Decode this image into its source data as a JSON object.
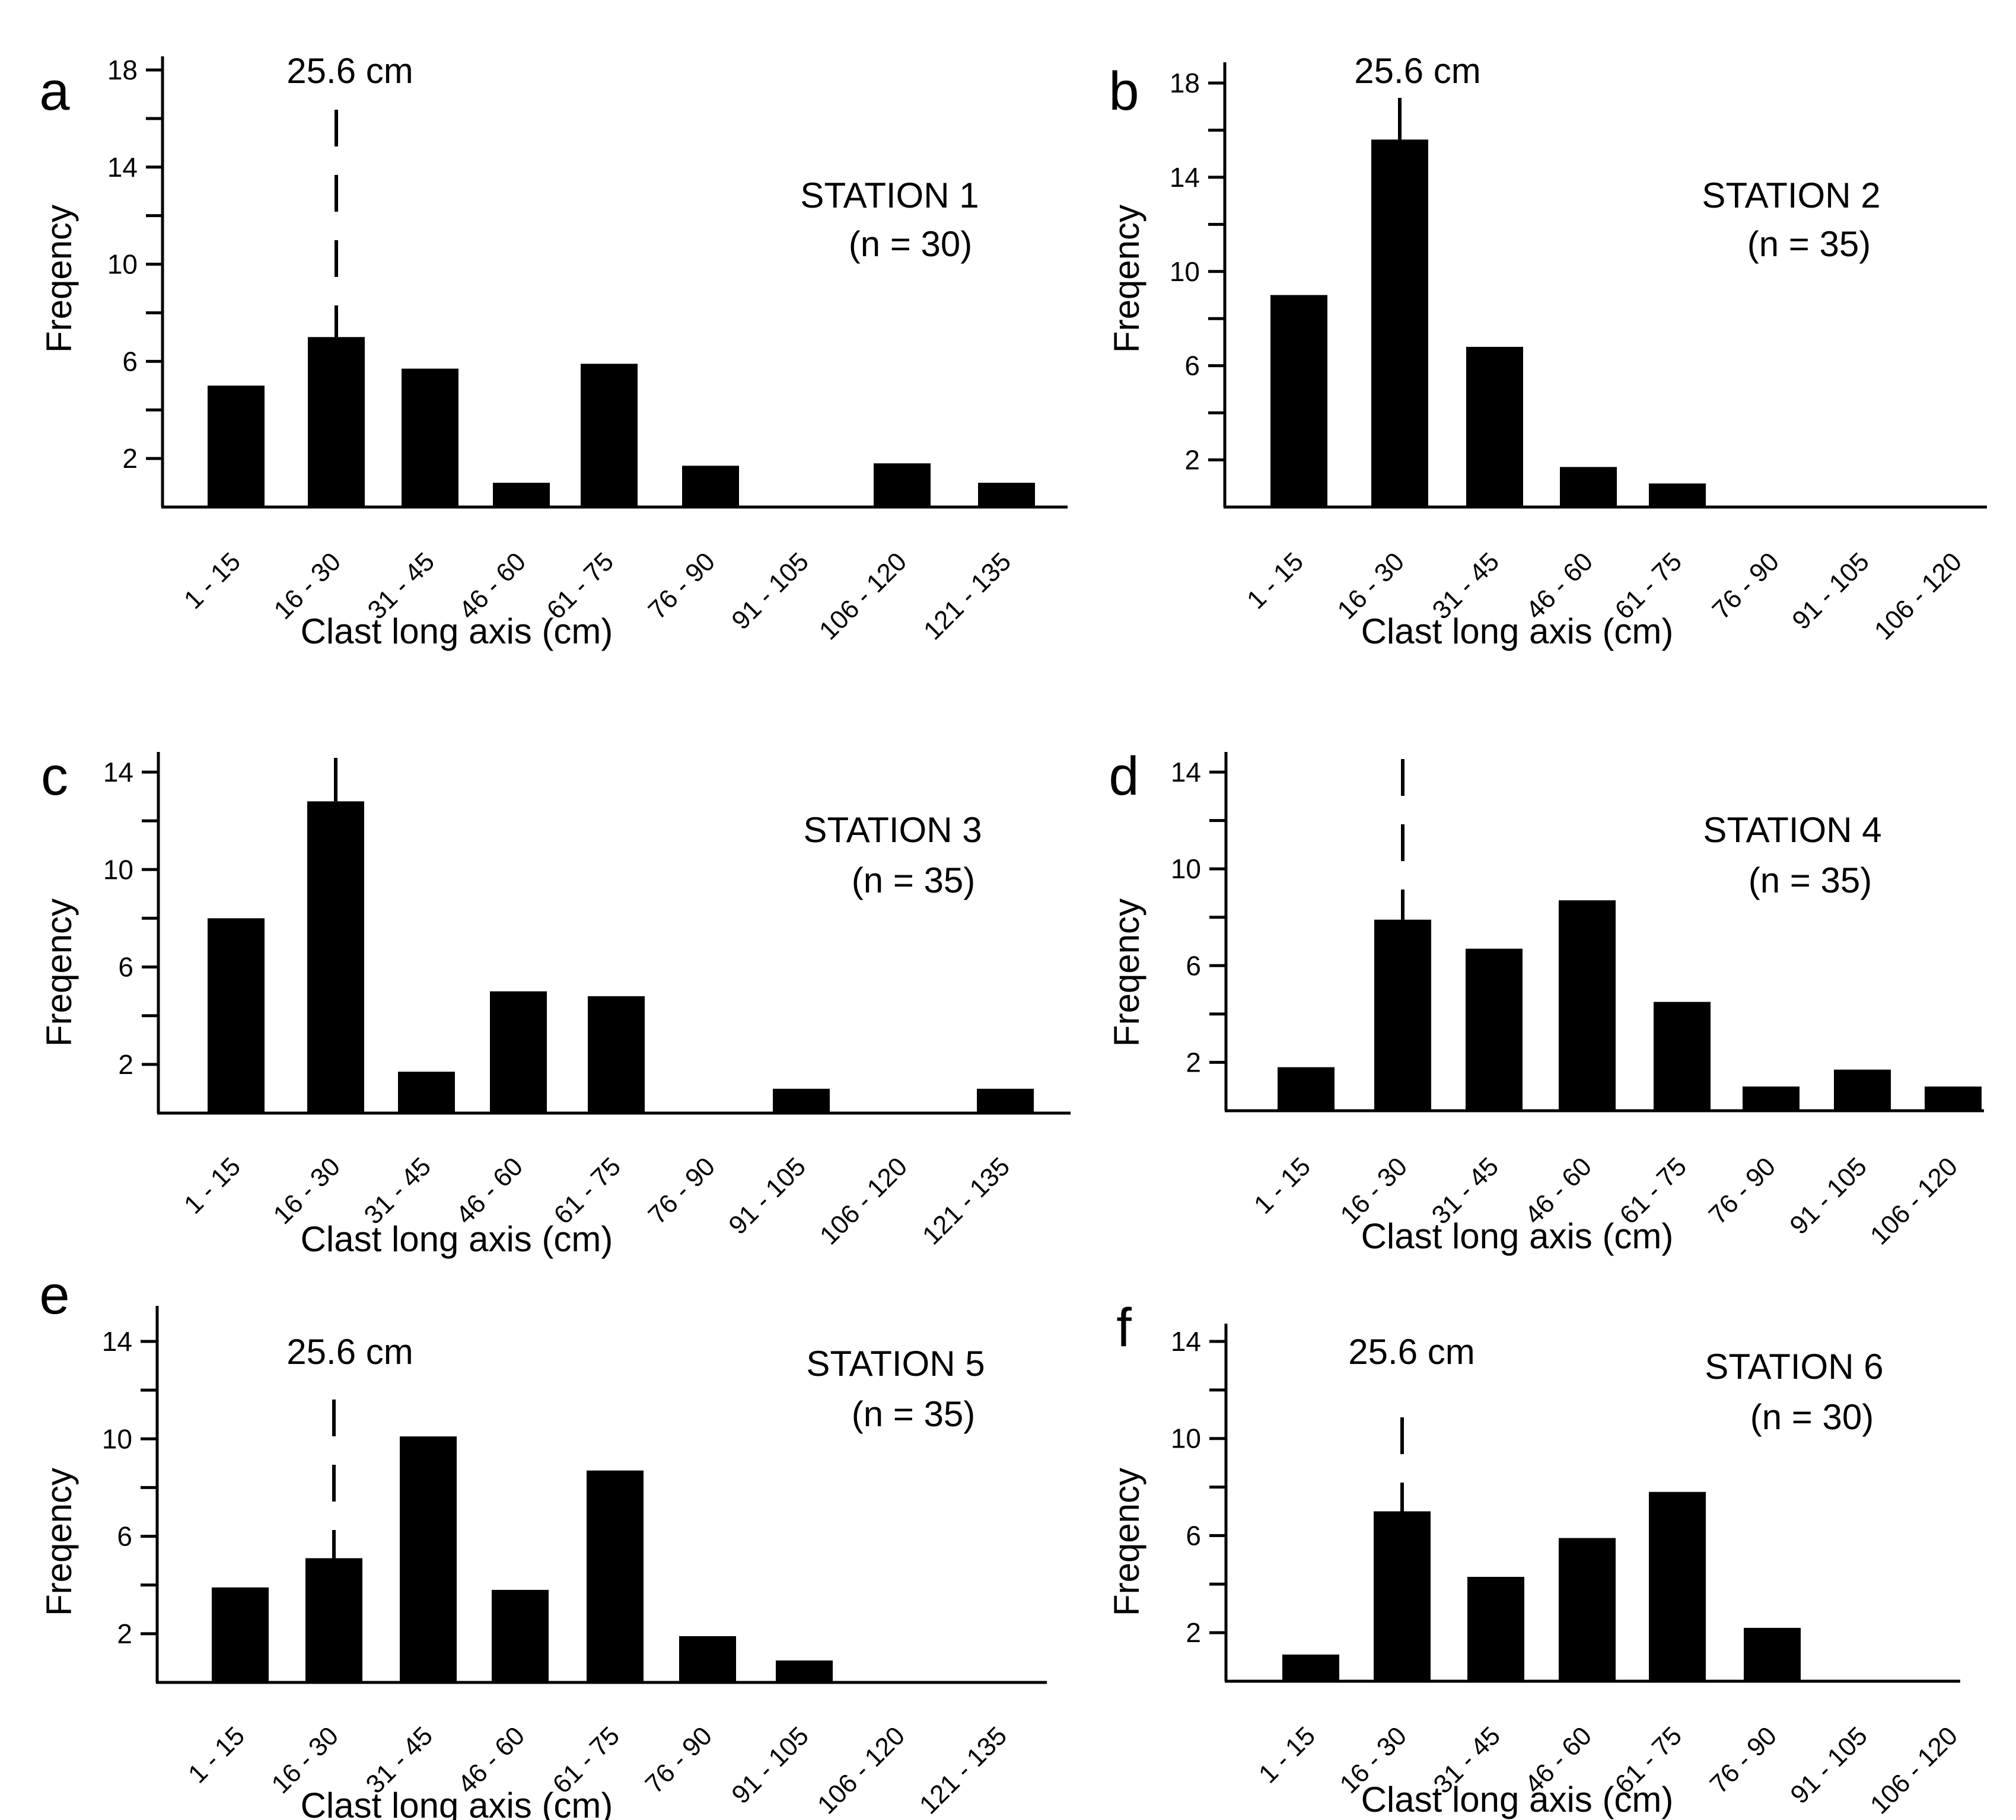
{
  "figure": {
    "ink_color": "#000000",
    "background_color": "#ffffff"
  },
  "chart_data": [
    {
      "type": "bar",
      "panel_letter": "a",
      "title": "STATION 1",
      "subtitle": "(n = 30)",
      "xlabel": "Clast long axis (cm)",
      "ylabel": "Freqency",
      "categories": [
        "1 - 15",
        "16 - 30",
        "31 - 45",
        "46 - 60",
        "61 - 75",
        "76 - 90",
        "91 - 105",
        "106 - 120",
        "121 - 135"
      ],
      "values": [
        5,
        7,
        5.7,
        1,
        5.9,
        1.7,
        0,
        1.8,
        1
      ],
      "ylim": [
        0,
        19
      ],
      "yticks": [
        2,
        4,
        6,
        8,
        10,
        12,
        14,
        16,
        18
      ],
      "ytick_labels": [
        "2",
        "6",
        "10",
        "14",
        "18"
      ],
      "marker": {
        "label": "25.6 cm",
        "category_index": 1,
        "style": "dashed"
      },
      "grid": false
    },
    {
      "type": "bar",
      "panel_letter": "b",
      "title": "STATION 2",
      "subtitle": "(n = 35)",
      "xlabel": "Clast long axis (cm)",
      "ylabel": "Freqency",
      "categories": [
        "1 - 15",
        "16 - 30",
        "31 - 45",
        "46 - 60",
        "61 - 75",
        "76 - 90",
        "91 - 105",
        "106 - 120"
      ],
      "values": [
        9,
        15.6,
        6.8,
        1.7,
        1,
        0,
        0,
        0
      ],
      "ylim": [
        0,
        18.8
      ],
      "yticks": [
        2,
        4,
        6,
        8,
        10,
        12,
        14,
        16,
        18
      ],
      "ytick_labels": [
        "2",
        "6",
        "10",
        "14",
        "18"
      ],
      "marker": {
        "label": "25.6 cm",
        "category_index": 1,
        "style": "solid"
      },
      "grid": false
    },
    {
      "type": "bar",
      "panel_letter": "c",
      "title": "STATION 3",
      "subtitle": "(n = 35)",
      "xlabel": "Clast long axis (cm)",
      "ylabel": "Freqency",
      "categories": [
        "1 - 15",
        "16 - 30",
        "31 - 45",
        "46 - 60",
        "61 - 75",
        "76 - 90",
        "91 - 105",
        "106 - 120",
        "121 - 135"
      ],
      "values": [
        8,
        12.8,
        1.7,
        5,
        4.8,
        0,
        1,
        0,
        1
      ],
      "ylim": [
        0,
        14.8
      ],
      "yticks": [
        2,
        4,
        6,
        8,
        10,
        12,
        14
      ],
      "ytick_labels": [
        "2",
        "6",
        "10",
        "14"
      ],
      "marker": {
        "label": "",
        "category_index": 1,
        "style": "solid"
      },
      "grid": false
    },
    {
      "type": "bar",
      "panel_letter": "d",
      "title": "STATION 4",
      "subtitle": "(n = 35)",
      "xlabel": "Clast long axis (cm)",
      "ylabel": "Freqency",
      "categories": [
        "1 - 15",
        "16 - 30",
        "31 - 45",
        "46 - 60",
        "61 - 75",
        "76 - 90",
        "91 - 105",
        "106 - 120"
      ],
      "values": [
        1.8,
        7.9,
        6.7,
        8.7,
        4.5,
        1,
        1.7,
        1
      ],
      "ylim": [
        0,
        14.9
      ],
      "yticks": [
        2,
        4,
        6,
        8,
        10,
        12,
        14
      ],
      "ytick_labels": [
        "2",
        "6",
        "10",
        "14"
      ],
      "marker": {
        "label": "",
        "category_index": 1,
        "style": "dashed"
      },
      "grid": false
    },
    {
      "type": "bar",
      "panel_letter": "e",
      "title": "STATION 5",
      "subtitle": "(n = 35)",
      "xlabel": "Clast long axis (cm)",
      "ylabel": "Freqency",
      "categories": [
        "1 - 15",
        "16 - 30",
        "31 - 45",
        "46 - 60",
        "61 - 75",
        "76 - 90",
        "91 - 105",
        "106 - 120",
        "121 - 135"
      ],
      "values": [
        3.9,
        5.1,
        10.1,
        3.8,
        8.7,
        1.9,
        0.9,
        0,
        0
      ],
      "ylim": [
        0,
        15.2
      ],
      "yticks": [
        2,
        4,
        6,
        8,
        10,
        12,
        14
      ],
      "ytick_labels": [
        "2",
        "6",
        "10",
        "14"
      ],
      "marker": {
        "label": "25.6 cm",
        "category_index": 1,
        "style": "dashed"
      },
      "grid": false
    },
    {
      "type": "bar",
      "panel_letter": "f",
      "title": "STATION 6",
      "subtitle": "(n = 30)",
      "xlabel": "Clast long axis (cm)",
      "ylabel": "Freqency",
      "categories": [
        "1 - 15",
        "16 - 30",
        "31 - 45",
        "46 - 60",
        "61 - 75",
        "76 - 90",
        "91 - 105",
        "106 - 120"
      ],
      "values": [
        1.1,
        7,
        4.3,
        5.9,
        7.8,
        2.2,
        0,
        0
      ],
      "ylim": [
        0,
        15.2
      ],
      "yticks": [
        2,
        4,
        6,
        8,
        10,
        12,
        14
      ],
      "ytick_labels": [
        "2",
        "6",
        "10",
        "14"
      ],
      "marker": {
        "label": "25.6 cm",
        "category_index": 1,
        "style": "dashed"
      },
      "grid": false
    }
  ]
}
